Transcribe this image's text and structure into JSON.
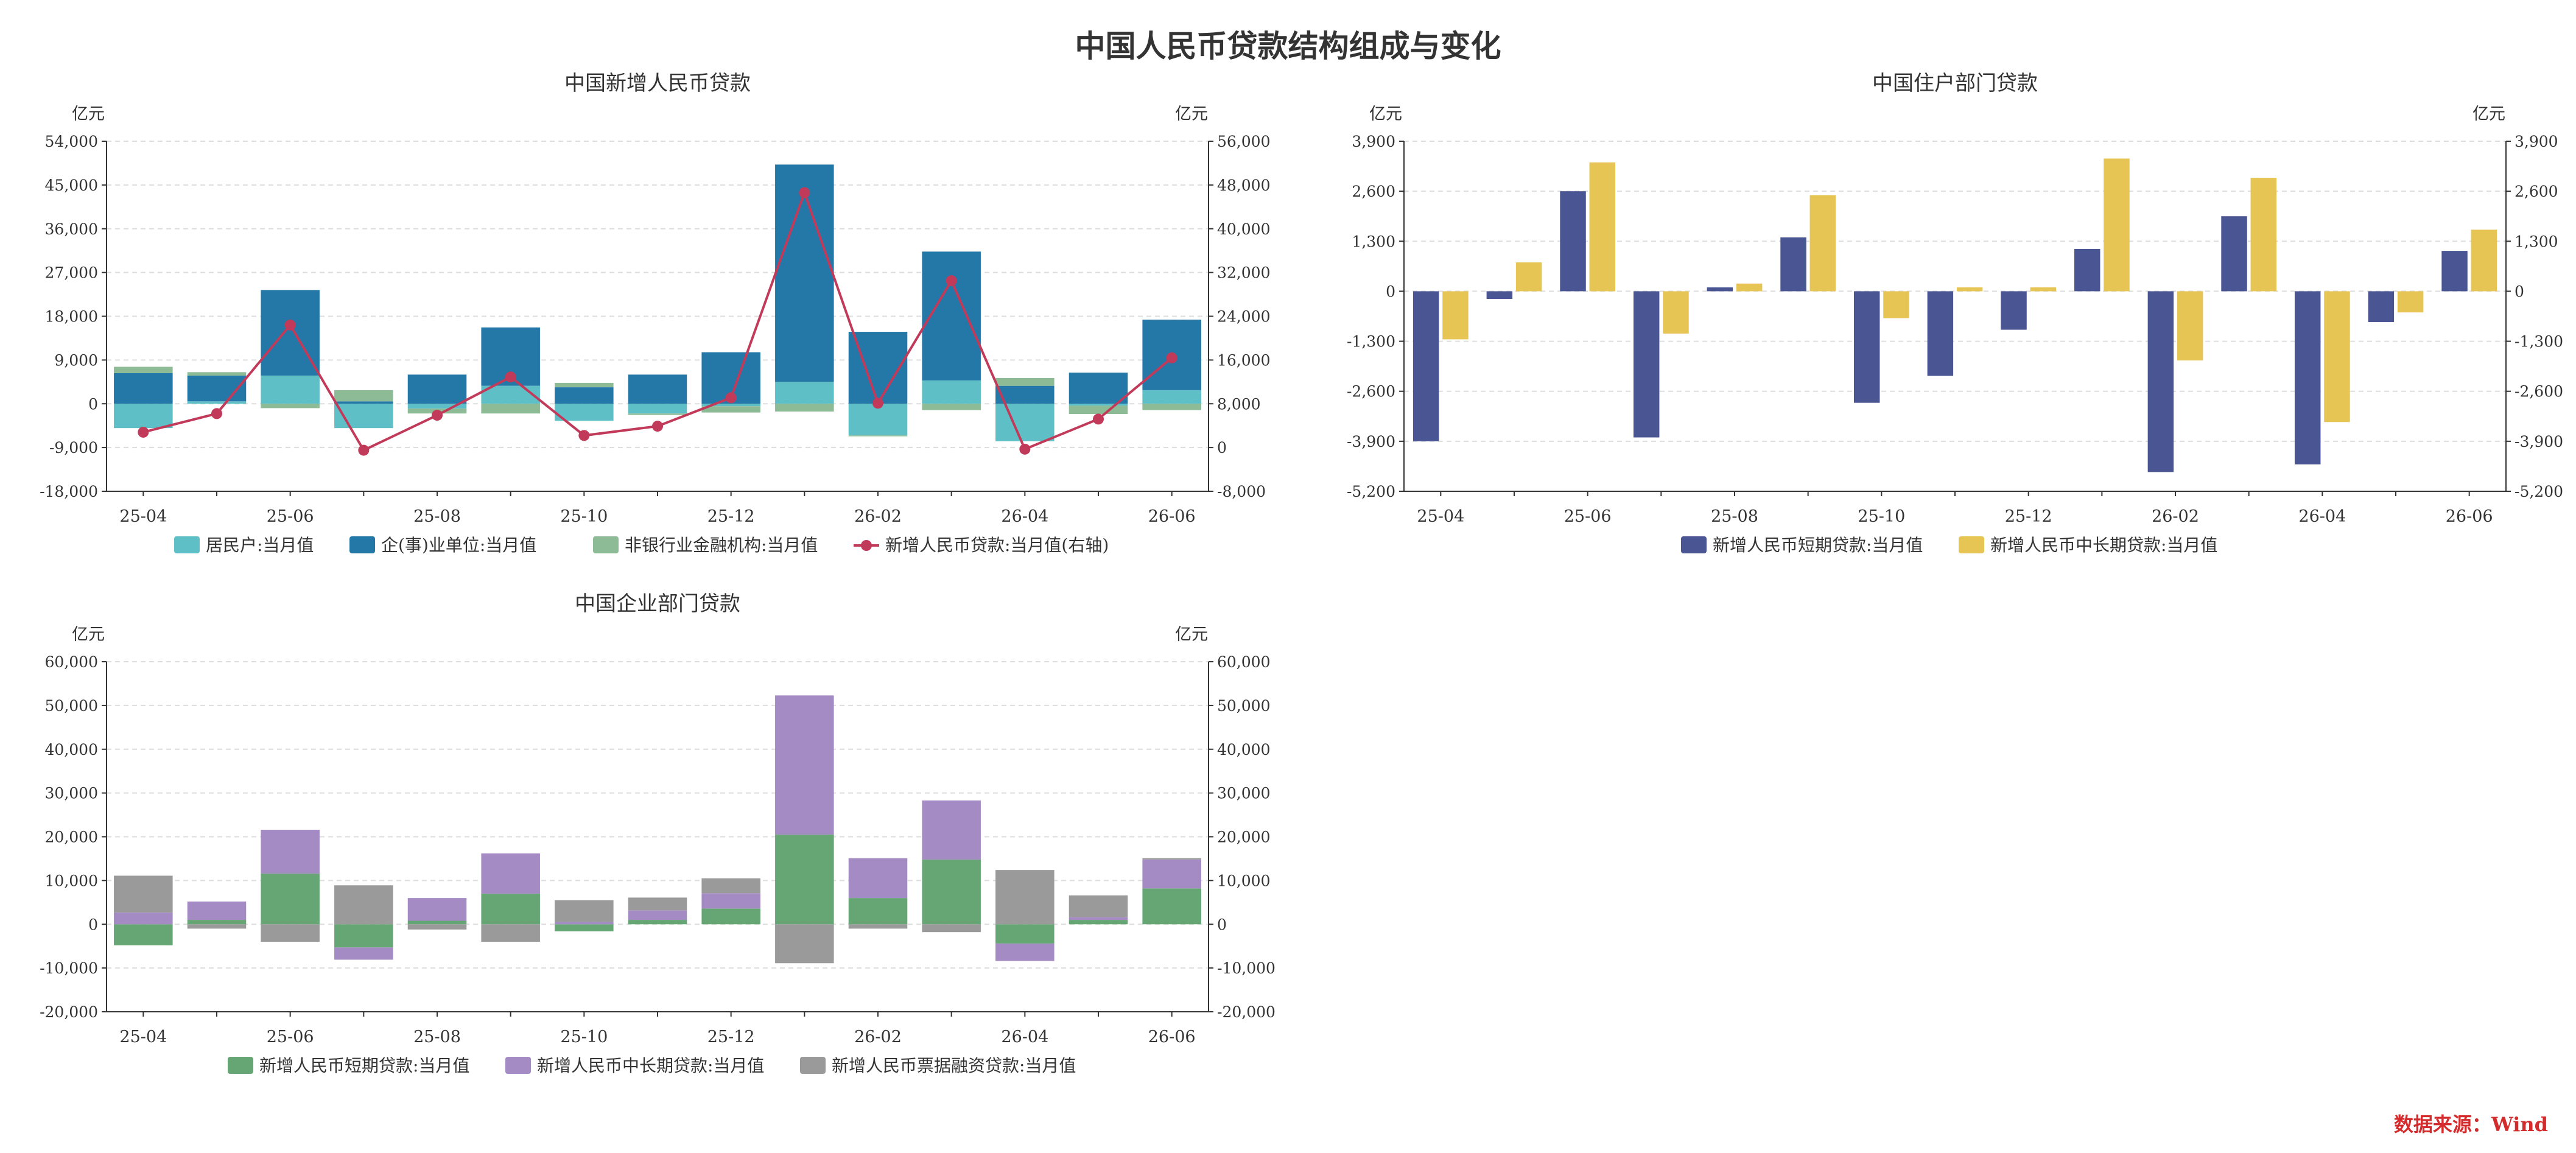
{
  "title": "中国人民币贷款结构组成与变化",
  "source": "数据来源：Wind",
  "colors": {
    "resident": "#5fbfc6",
    "enterprise": "#2378a8",
    "nonbank": "#8dbb96",
    "total": "#c23a5a",
    "hh_short": "#4a5694",
    "hh_long": "#e6c555",
    "corp_short": "#65a674",
    "corp_long": "#a58bc4",
    "corp_bill": "#9a9a9a"
  },
  "chart_data": [
    {
      "type": "bar",
      "title": "中国新增人民币贷款",
      "ylabel": "亿元",
      "y2label": "亿元",
      "ylim": [
        -18000,
        54000
      ],
      "yticks": [
        -18000,
        -9000,
        0,
        9000,
        18000,
        27000,
        36000,
        45000,
        54000
      ],
      "y2lim": [
        -8000,
        56000
      ],
      "y2ticks": [
        -8000,
        0,
        8000,
        16000,
        24000,
        32000,
        40000,
        48000,
        56000
      ],
      "categories": [
        "25-04",
        "25-05",
        "25-06",
        "25-07",
        "25-08",
        "25-09",
        "25-10",
        "25-11",
        "25-12",
        "26-01",
        "26-02",
        "26-03",
        "26-04",
        "26-05",
        "26-06"
      ],
      "xtick_labels": [
        "25-04",
        "25-06",
        "25-08",
        "25-10",
        "25-12",
        "26-02",
        "26-04",
        "26-06"
      ],
      "grid": true,
      "legend": "bottom",
      "series": [
        {
          "name": "居民户:当月值",
          "type": "bar",
          "color_key": "resident",
          "values": [
            -5000,
            500,
            5800,
            -5000,
            -1000,
            3700,
            -3500,
            -2000,
            -500,
            4500,
            -6500,
            4800,
            -7700,
            -400,
            2800
          ]
        },
        {
          "name": "企(事)业单位:当月值",
          "type": "bar",
          "color_key": "enterprise",
          "values": [
            6300,
            5300,
            17600,
            500,
            6000,
            12000,
            3400,
            6000,
            10600,
            44700,
            14800,
            26500,
            3700,
            6400,
            14500
          ]
        },
        {
          "name": "非银行业金融机构:当月值",
          "type": "bar",
          "color_key": "nonbank",
          "values": [
            1300,
            700,
            -900,
            2300,
            -1000,
            -2000,
            900,
            -300,
            -1300,
            -1600,
            -200,
            -1300,
            1600,
            -1700,
            -1300
          ]
        },
        {
          "name": "新增人民币贷款:当月值(右轴)",
          "type": "line",
          "axis": "right",
          "color_key": "total",
          "values": [
            2800,
            6200,
            22400,
            -500,
            5900,
            12900,
            2200,
            3900,
            9100,
            46600,
            8100,
            30500,
            -300,
            5200,
            16400
          ]
        }
      ]
    },
    {
      "type": "bar",
      "title": "中国住户部门贷款",
      "ylabel": "亿元",
      "y2label": "亿元",
      "ylim": [
        -5200,
        3900
      ],
      "yticks": [
        -5200,
        -3900,
        -2600,
        -1300,
        0,
        1300,
        2600,
        3900
      ],
      "y2lim": [
        -5200,
        3900
      ],
      "y2ticks": [
        -5200,
        -3900,
        -2600,
        -1300,
        0,
        1300,
        2600,
        3900
      ],
      "categories": [
        "25-04",
        "25-05",
        "25-06",
        "25-07",
        "25-08",
        "25-09",
        "25-10",
        "25-11",
        "25-12",
        "26-01",
        "26-02",
        "26-03",
        "26-04",
        "26-05",
        "26-06"
      ],
      "xtick_labels": [
        "25-04",
        "25-06",
        "25-08",
        "25-10",
        "25-12",
        "26-02",
        "26-04",
        "26-06"
      ],
      "grid": true,
      "legend": "bottom",
      "series": [
        {
          "name": "新增人民币短期贷款:当月值",
          "type": "bar",
          "color_key": "hh_short",
          "values": [
            -3900,
            -200,
            2600,
            -3800,
            100,
            1400,
            -2900,
            -2200,
            -1000,
            1100,
            -4700,
            1950,
            -4500,
            -800,
            1050
          ]
        },
        {
          "name": "新增人民币中长期贷款:当月值",
          "type": "bar",
          "color_key": "hh_long",
          "values": [
            -1250,
            750,
            3350,
            -1100,
            200,
            2500,
            -700,
            100,
            100,
            3450,
            -1800,
            2950,
            -3400,
            -550,
            1600
          ]
        }
      ]
    },
    {
      "type": "bar",
      "title": "中国企业部门贷款",
      "ylabel": "亿元",
      "y2label": "亿元",
      "ylim": [
        -20000,
        60000
      ],
      "yticks": [
        -20000,
        -10000,
        0,
        10000,
        20000,
        30000,
        40000,
        50000,
        60000
      ],
      "y2lim": [
        -20000,
        60000
      ],
      "y2ticks": [
        -20000,
        -10000,
        0,
        10000,
        20000,
        30000,
        40000,
        50000,
        60000
      ],
      "categories": [
        "25-04",
        "25-05",
        "25-06",
        "25-07",
        "25-08",
        "25-09",
        "25-10",
        "25-11",
        "25-12",
        "26-01",
        "26-02",
        "26-03",
        "26-04",
        "26-05",
        "26-06"
      ],
      "xtick_labels": [
        "25-04",
        "25-06",
        "25-08",
        "25-10",
        "25-12",
        "26-02",
        "26-04",
        "26-06"
      ],
      "grid": true,
      "legend": "bottom",
      "series": [
        {
          "name": "新增人民币短期贷款:当月值",
          "type": "bar",
          "color_key": "corp_short",
          "values": [
            -4800,
            1000,
            11600,
            -5300,
            800,
            7000,
            -1600,
            1000,
            3600,
            20500,
            6000,
            14800,
            -4400,
            1000,
            8200
          ]
        },
        {
          "name": "新增人民币中长期贷款:当月值",
          "type": "bar",
          "color_key": "corp_long",
          "values": [
            2700,
            4200,
            10000,
            -2800,
            5200,
            9200,
            500,
            2200,
            3500,
            31800,
            9100,
            13500,
            -4000,
            600,
            6600
          ]
        },
        {
          "name": "新增人民币票据融资贷款:当月值",
          "type": "bar",
          "color_key": "corp_bill",
          "values": [
            8400,
            -1000,
            -4000,
            8900,
            -1200,
            -4000,
            5000,
            2900,
            3400,
            -8900,
            -1000,
            -1800,
            12400,
            5000,
            300
          ]
        }
      ]
    }
  ]
}
